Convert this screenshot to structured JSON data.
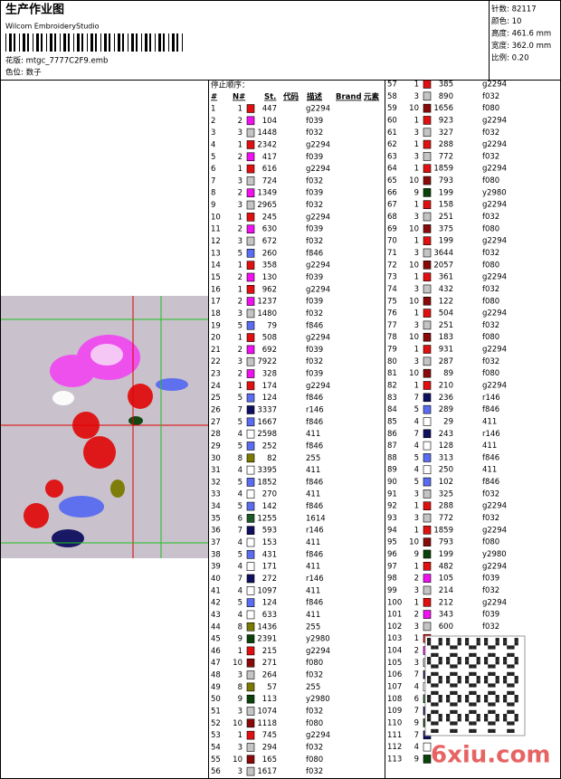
{
  "header": {
    "title": "生产作业图",
    "software": "Wilcom EmbroideryStudio",
    "design": "花版: mtgc_7777C2F9.emb",
    "colorway": "色位: 数子"
  },
  "summary": [
    "针数: 82117",
    "颜色: 10",
    "高度: 461.6 mm",
    "宽度: 362.0 mm",
    "比例: 0.20"
  ],
  "table": {
    "caption": "停止顺序：",
    "columns": [
      "#",
      "N#",
      "St.",
      "代码",
      "描述",
      "Brand",
      "元素"
    ],
    "needle_colors": {
      "1": "#e01010",
      "2": "#f010f0",
      "3": "#c4c4c4",
      "4": "#ffffff",
      "5": "#5a6cf0",
      "6": "#1e5a28",
      "7": "#101060",
      "8": "#7a7a00",
      "9": "#0a420a",
      "10": "#8a0a0a"
    },
    "rows": [
      [
        1,
        1,
        447,
        "g2294"
      ],
      [
        2,
        2,
        104,
        "f039"
      ],
      [
        3,
        3,
        1448,
        "f032"
      ],
      [
        4,
        1,
        2342,
        "g2294"
      ],
      [
        5,
        2,
        417,
        "f039"
      ],
      [
        6,
        1,
        616,
        "g2294"
      ],
      [
        7,
        3,
        724,
        "f032"
      ],
      [
        8,
        2,
        1349,
        "f039"
      ],
      [
        9,
        3,
        2965,
        "f032"
      ],
      [
        10,
        1,
        245,
        "g2294"
      ],
      [
        11,
        2,
        630,
        "f039"
      ],
      [
        12,
        3,
        672,
        "f032"
      ],
      [
        13,
        5,
        260,
        "f846"
      ],
      [
        14,
        1,
        358,
        "g2294"
      ],
      [
        15,
        2,
        130,
        "f039"
      ],
      [
        16,
        1,
        962,
        "g2294"
      ],
      [
        17,
        2,
        1237,
        "f039"
      ],
      [
        18,
        3,
        1480,
        "f032"
      ],
      [
        19,
        5,
        79,
        "f846"
      ],
      [
        20,
        1,
        508,
        "g2294"
      ],
      [
        21,
        2,
        692,
        "f039"
      ],
      [
        22,
        3,
        7922,
        "f032"
      ],
      [
        23,
        2,
        328,
        "f039"
      ],
      [
        24,
        1,
        174,
        "g2294"
      ],
      [
        25,
        5,
        124,
        "f846"
      ],
      [
        26,
        7,
        3337,
        "r146"
      ],
      [
        27,
        5,
        1667,
        "f846"
      ],
      [
        28,
        4,
        2598,
        "411"
      ],
      [
        29,
        5,
        252,
        "f846"
      ],
      [
        30,
        8,
        82,
        "255"
      ],
      [
        31,
        4,
        3395,
        "411"
      ],
      [
        32,
        5,
        1852,
        "f846"
      ],
      [
        33,
        4,
        270,
        "411"
      ],
      [
        34,
        5,
        142,
        "f846"
      ],
      [
        35,
        6,
        1255,
        "1614"
      ],
      [
        36,
        7,
        593,
        "r146"
      ],
      [
        37,
        4,
        153,
        "411"
      ],
      [
        38,
        5,
        431,
        "f846"
      ],
      [
        39,
        4,
        171,
        "411"
      ],
      [
        40,
        7,
        272,
        "r146"
      ],
      [
        41,
        4,
        1097,
        "411"
      ],
      [
        42,
        5,
        124,
        "f846"
      ],
      [
        43,
        4,
        633,
        "411"
      ],
      [
        44,
        8,
        1436,
        "255"
      ],
      [
        45,
        9,
        2391,
        "y2980"
      ],
      [
        46,
        1,
        215,
        "g2294"
      ],
      [
        47,
        10,
        271,
        "f080"
      ],
      [
        48,
        3,
        264,
        "f032"
      ],
      [
        49,
        8,
        57,
        "255"
      ],
      [
        50,
        9,
        113,
        "y2980"
      ],
      [
        51,
        3,
        1074,
        "f032"
      ],
      [
        52,
        10,
        1118,
        "f080"
      ],
      [
        53,
        1,
        745,
        "g2294"
      ],
      [
        54,
        3,
        294,
        "f032"
      ],
      [
        55,
        10,
        165,
        "f080"
      ],
      [
        56,
        3,
        1617,
        "f032"
      ],
      [
        57,
        1,
        385,
        "g2294"
      ],
      [
        58,
        3,
        890,
        "f032"
      ],
      [
        59,
        10,
        1656,
        "f080"
      ],
      [
        60,
        1,
        923,
        "g2294"
      ],
      [
        61,
        3,
        327,
        "f032"
      ],
      [
        62,
        1,
        288,
        "g2294"
      ],
      [
        63,
        3,
        772,
        "f032"
      ],
      [
        64,
        1,
        1859,
        "g2294"
      ],
      [
        65,
        10,
        793,
        "f080"
      ],
      [
        66,
        9,
        199,
        "y2980"
      ],
      [
        67,
        1,
        158,
        "g2294"
      ],
      [
        68,
        3,
        251,
        "f032"
      ],
      [
        69,
        10,
        375,
        "f080"
      ],
      [
        70,
        1,
        199,
        "g2294"
      ],
      [
        71,
        3,
        3644,
        "f032"
      ],
      [
        72,
        10,
        2057,
        "f080"
      ],
      [
        73,
        1,
        361,
        "g2294"
      ],
      [
        74,
        3,
        432,
        "f032"
      ],
      [
        75,
        10,
        122,
        "f080"
      ],
      [
        76,
        1,
        504,
        "g2294"
      ],
      [
        77,
        3,
        251,
        "f032"
      ],
      [
        78,
        10,
        183,
        "f080"
      ],
      [
        79,
        1,
        931,
        "g2294"
      ],
      [
        80,
        3,
        287,
        "f032"
      ],
      [
        81,
        10,
        89,
        "f080"
      ],
      [
        82,
        1,
        210,
        "g2294"
      ],
      [
        83,
        7,
        236,
        "r146"
      ],
      [
        84,
        5,
        289,
        "f846"
      ],
      [
        85,
        4,
        29,
        "411"
      ],
      [
        86,
        7,
        243,
        "r146"
      ],
      [
        87,
        4,
        128,
        "411"
      ],
      [
        88,
        5,
        313,
        "f846"
      ],
      [
        89,
        4,
        250,
        "411"
      ],
      [
        90,
        5,
        102,
        "f846"
      ],
      [
        91,
        3,
        325,
        "f032"
      ],
      [
        92,
        1,
        288,
        "g2294"
      ],
      [
        93,
        3,
        772,
        "f032"
      ],
      [
        94,
        1,
        1859,
        "g2294"
      ],
      [
        95,
        10,
        793,
        "f080"
      ],
      [
        96,
        9,
        199,
        "y2980"
      ],
      [
        97,
        1,
        482,
        "g2294"
      ],
      [
        98,
        2,
        105,
        "f039"
      ],
      [
        99,
        3,
        214,
        "f032"
      ],
      [
        100,
        1,
        212,
        "g2294"
      ],
      [
        101,
        2,
        343,
        "f039"
      ],
      [
        102,
        3,
        600,
        "f032"
      ],
      [
        103,
        1
      ],
      [
        104,
        2
      ],
      [
        105,
        3
      ],
      [
        106,
        7
      ],
      [
        107,
        4
      ],
      [
        108,
        6
      ],
      [
        109,
        7
      ],
      [
        110,
        9
      ],
      [
        111,
        7
      ],
      [
        112,
        4
      ],
      [
        113,
        9
      ]
    ]
  },
  "watermark": "6xiu.com"
}
